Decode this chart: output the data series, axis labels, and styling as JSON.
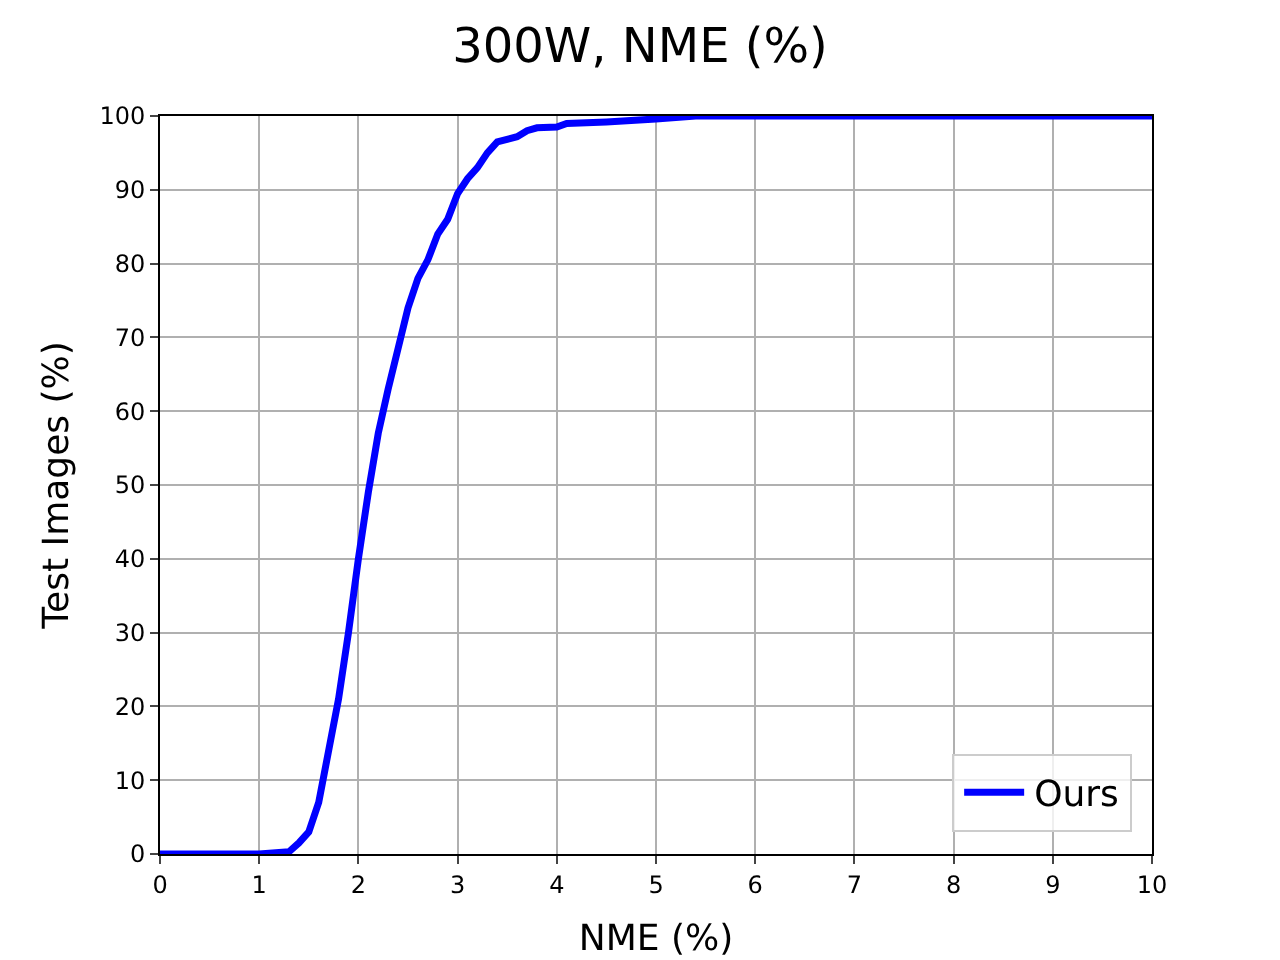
{
  "chart_data": {
    "type": "line",
    "title": "300W, NME (%)",
    "xlabel": "NME (%)",
    "ylabel": "Test Images (%)",
    "x": [
      0,
      1.0,
      1.3,
      1.4,
      1.5,
      1.6,
      1.7,
      1.8,
      1.9,
      2.0,
      2.1,
      2.2,
      2.3,
      2.4,
      2.5,
      2.6,
      2.7,
      2.8,
      2.9,
      3.0,
      3.1,
      3.2,
      3.3,
      3.4,
      3.6,
      3.7,
      3.8,
      4.0,
      4.1,
      4.5,
      5.0,
      5.4,
      10
    ],
    "series": [
      {
        "name": "Ours",
        "color": "#0000ff",
        "values": [
          0,
          0,
          0.3,
          1.5,
          3,
          7,
          14,
          21,
          30,
          40,
          49,
          57,
          63,
          68.5,
          74,
          78,
          80.5,
          84,
          86,
          89.5,
          91.5,
          93,
          95,
          96.5,
          97.2,
          98,
          98.4,
          98.5,
          99,
          99.2,
          99.6,
          100,
          100
        ]
      }
    ],
    "xlim": [
      0,
      10
    ],
    "xticks": [
      0,
      1,
      2,
      3,
      4,
      5,
      6,
      7,
      8,
      9,
      10
    ],
    "ylim": [
      0,
      100
    ],
    "yticks": [
      0,
      10,
      20,
      30,
      40,
      50,
      60,
      70,
      80,
      90,
      100
    ],
    "grid": true,
    "legend": "bottom right",
    "marker": "none",
    "line_style": "solid"
  }
}
